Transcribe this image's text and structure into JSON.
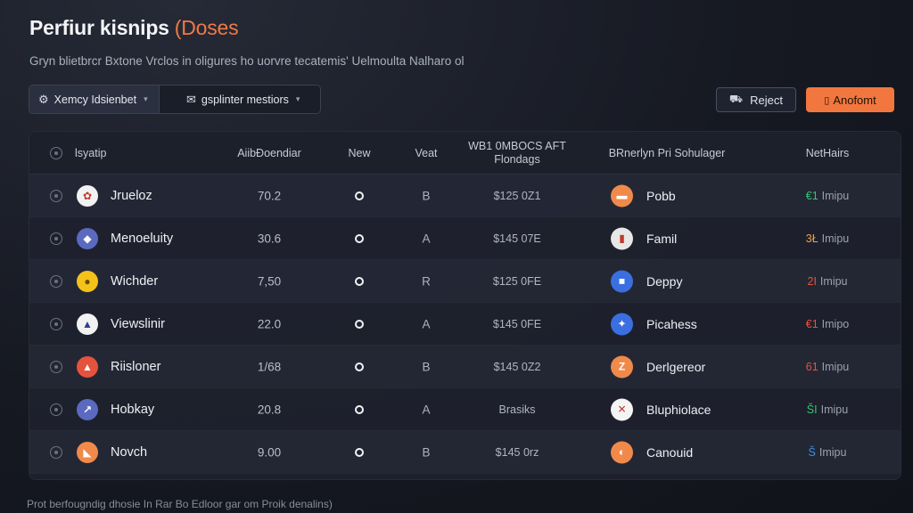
{
  "header": {
    "title": "Perfiur kisnips",
    "title_accent": "(Doses",
    "subtitle": "Gryn blietbrcr Bxtone Vrclos in oligures ho uorvre tecatemis' Uelmoulta Nalharo ol"
  },
  "filters": [
    {
      "icon": "gear-icon",
      "glyph": "⚙",
      "label": "Xemcy Idsienbet"
    },
    {
      "icon": "mail-icon",
      "glyph": "✉",
      "label": "gsplinter mestiors"
    }
  ],
  "actions": {
    "reject": {
      "icon": "car-icon",
      "glyph": "⛟",
      "label": "Reject"
    },
    "primary": {
      "icon": "document-icon",
      "glyph": "▯",
      "label": "Anofomt"
    }
  },
  "table": {
    "columns": [
      {
        "key": "name",
        "label": "lsyatip"
      },
      {
        "key": "score",
        "label": "AiibĐoendiar"
      },
      {
        "key": "new",
        "label": "New"
      },
      {
        "key": "grade",
        "label": "Veat"
      },
      {
        "key": "price",
        "label": "WB1 0MBOCS AFT\nFlondags"
      },
      {
        "key": "provider",
        "label": "BRnerlyn Pri Sohulager"
      },
      {
        "key": "status",
        "label": "NetHairs"
      }
    ],
    "rows": [
      {
        "name": "Jrueloz",
        "logo_bg": "#f2f2f2",
        "logo_fg": "#c0392b",
        "logo_glyph": "✿",
        "score": "70.2",
        "grade": "B",
        "price": "$125 0Z1",
        "provider": "Pobb",
        "plogo_bg": "#f08a4b",
        "plogo_glyph": "▬",
        "status_code": "€1",
        "status_color": "#38c172",
        "status_label": "Imipu"
      },
      {
        "name": "Menoeluity",
        "logo_bg": "#5b6abf",
        "logo_fg": "#ffffff",
        "logo_glyph": "◆",
        "score": "30.6",
        "grade": "A",
        "price": "$145 07E",
        "provider": "Famil",
        "plogo_bg": "#e7e7e7",
        "plogo_glyph": "▮",
        "status_code": "3Ł",
        "status_color": "#f0a04b",
        "status_label": "Imipu"
      },
      {
        "name": "Wichder",
        "logo_bg": "#f3c21b",
        "logo_fg": "#6b4b00",
        "logo_glyph": "●",
        "score": "7,50",
        "grade": "R",
        "price": "$125 0FE",
        "provider": "Deppy",
        "plogo_bg": "#3b6fe0",
        "plogo_glyph": "■",
        "status_code": "2I",
        "status_color": "#e5533d",
        "status_label": "Imipu"
      },
      {
        "name": "Viewslinir",
        "logo_bg": "#f2f2f2",
        "logo_fg": "#2c3e8f",
        "logo_glyph": "▲",
        "score": "22.0",
        "grade": "A",
        "price": "$145 0FE",
        "provider": "Picahess",
        "plogo_bg": "#3b6fe0",
        "plogo_glyph": "✦",
        "status_code": "€1",
        "status_color": "#e5533d",
        "status_label": "Imipo"
      },
      {
        "name": "Riisloner",
        "logo_bg": "#e5533d",
        "logo_fg": "#ffffff",
        "logo_glyph": "▲",
        "score": "1/68",
        "grade": "B",
        "price": "$145 0Z2",
        "provider": "Derlgereor",
        "plogo_bg": "#f08a4b",
        "plogo_glyph": "Z",
        "status_code": "61",
        "status_color": "#e5533d",
        "status_label": "Imipu"
      },
      {
        "name": "Hobkay",
        "logo_bg": "#5b6abf",
        "logo_fg": "#ffffff",
        "logo_glyph": "↗",
        "score": "20.8",
        "grade": "A",
        "price": "Brasiks",
        "provider": "Bluphiolace",
        "plogo_bg": "#f4f4f4",
        "plogo_glyph": "✕",
        "status_code": "ŠI",
        "status_color": "#38c172",
        "status_label": "Imipu"
      },
      {
        "name": "Novch",
        "logo_bg": "#f08a4b",
        "logo_fg": "#ffffff",
        "logo_glyph": "◣",
        "score": "9.00",
        "grade": "B",
        "price": "$145 0rz",
        "provider": "Canouid",
        "plogo_bg": "#f08a4b",
        "plogo_glyph": "◐",
        "status_code": "Š",
        "status_color": "#3b8fe0",
        "status_label": "Imipu"
      }
    ]
  },
  "footer": "Prot berfougndig dhosie In Rar Bo Edloor gar om Proik denalins)"
}
